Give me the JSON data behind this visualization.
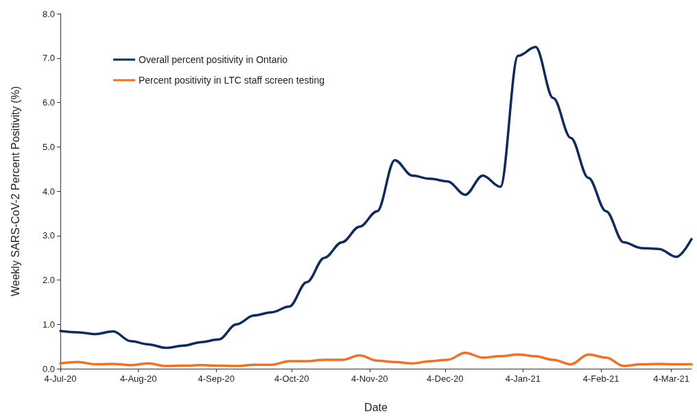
{
  "chart_data": {
    "type": "line",
    "xlabel": "Date",
    "ylabel": "Weekly SARS-CoV-2 Percent Positivity (%)",
    "x": [
      "2020-07-04",
      "2020-07-11",
      "2020-07-18",
      "2020-07-25",
      "2020-08-01",
      "2020-08-08",
      "2020-08-15",
      "2020-08-22",
      "2020-08-29",
      "2020-09-05",
      "2020-09-12",
      "2020-09-19",
      "2020-09-26",
      "2020-10-03",
      "2020-10-10",
      "2020-10-17",
      "2020-10-24",
      "2020-10-31",
      "2020-11-07",
      "2020-11-14",
      "2020-11-21",
      "2020-11-28",
      "2020-12-05",
      "2020-12-12",
      "2020-12-19",
      "2020-12-26",
      "2021-01-02",
      "2021-01-09",
      "2021-01-16",
      "2021-01-23",
      "2021-01-30",
      "2021-02-06",
      "2021-02-13",
      "2021-02-20",
      "2021-02-27",
      "2021-03-06",
      "2021-03-12"
    ],
    "series": [
      {
        "name": "Overall percent positivity in Ontario",
        "color": "#0d2b5e",
        "values": [
          0.85,
          0.82,
          0.78,
          0.84,
          0.62,
          0.55,
          0.47,
          0.52,
          0.6,
          0.66,
          1.0,
          1.2,
          1.27,
          1.4,
          1.95,
          2.5,
          2.85,
          3.2,
          3.55,
          4.7,
          4.35,
          4.28,
          4.22,
          3.92,
          4.35,
          4.1,
          7.05,
          7.25,
          6.1,
          5.2,
          4.3,
          3.55,
          2.85,
          2.72,
          2.7,
          2.52,
          2.92
        ]
      },
      {
        "name": "Percent positivity in LTC staff screen testing",
        "color": "#f36f21",
        "values": [
          0.12,
          0.15,
          0.1,
          0.11,
          0.08,
          0.12,
          0.06,
          0.07,
          0.08,
          0.07,
          0.06,
          0.09,
          0.09,
          0.17,
          0.17,
          0.2,
          0.2,
          0.3,
          0.18,
          0.15,
          0.12,
          0.17,
          0.2,
          0.36,
          0.25,
          0.28,
          0.32,
          0.28,
          0.2,
          0.1,
          0.32,
          0.25,
          0.06,
          0.1,
          0.11,
          0.1,
          0.1
        ]
      }
    ],
    "xlim": [
      "2020-07-04",
      "2021-03-12"
    ],
    "xticks": [
      {
        "value": "2020-07-04",
        "label": "4-Jul-20"
      },
      {
        "value": "2020-08-04",
        "label": "4-Aug-20"
      },
      {
        "value": "2020-09-04",
        "label": "4-Sep-20"
      },
      {
        "value": "2020-10-04",
        "label": "4-Oct-20"
      },
      {
        "value": "2020-11-04",
        "label": "4-Nov-20"
      },
      {
        "value": "2020-12-04",
        "label": "4-Dec-20"
      },
      {
        "value": "2021-01-04",
        "label": "4-Jan-21"
      },
      {
        "value": "2021-02-04",
        "label": "4-Feb-21"
      },
      {
        "value": "2021-03-04",
        "label": "4-Mar-21"
      }
    ],
    "ylim": [
      0,
      8
    ],
    "yticks": [
      {
        "value": 0,
        "label": "0.0"
      },
      {
        "value": 1,
        "label": "1.0"
      },
      {
        "value": 2,
        "label": "2.0"
      },
      {
        "value": 3,
        "label": "3.0"
      },
      {
        "value": 4,
        "label": "4.0"
      },
      {
        "value": 5,
        "label": "5.0"
      },
      {
        "value": 6,
        "label": "6.0"
      },
      {
        "value": 7,
        "label": "7.0"
      },
      {
        "value": 8,
        "label": "8.0"
      }
    ],
    "grid": false,
    "legend": "top left",
    "marker": "none",
    "line_style": "solid"
  }
}
